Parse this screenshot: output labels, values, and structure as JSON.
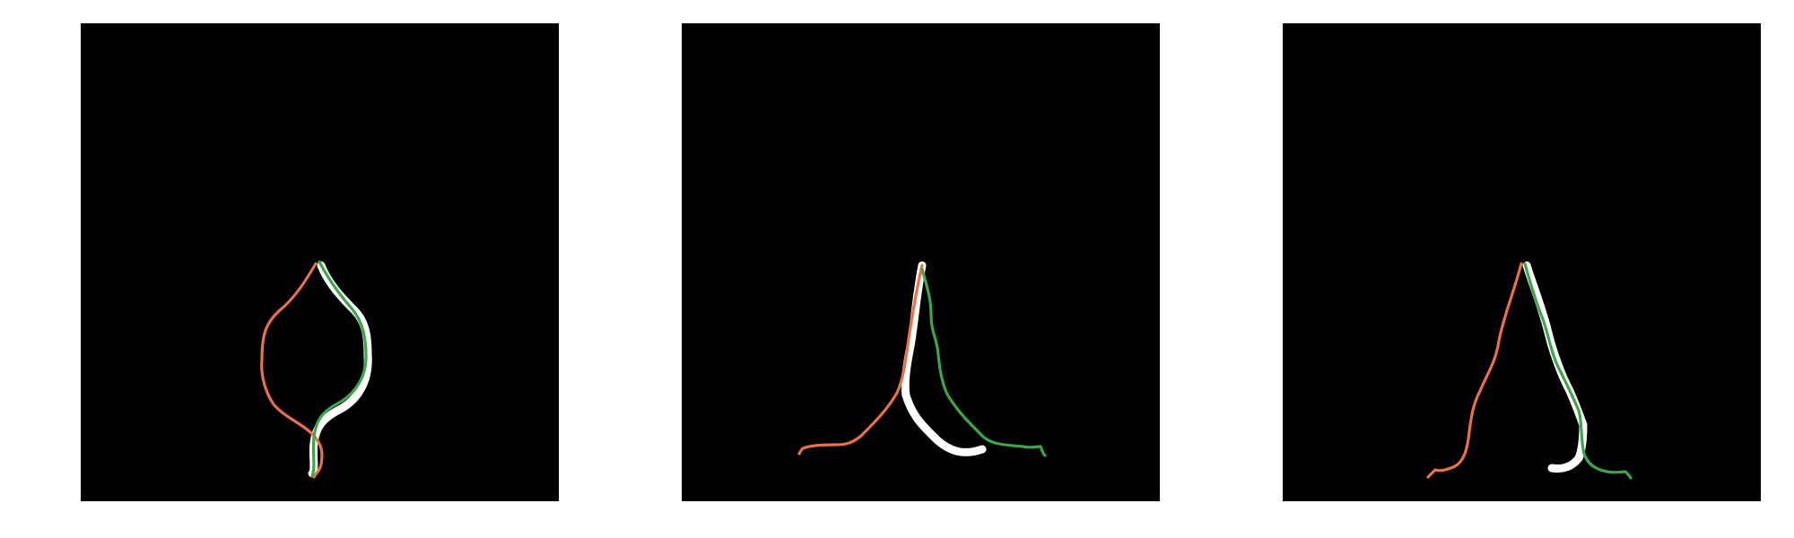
{
  "colors": {
    "background": "#ffffff",
    "panel": "#000000",
    "mask": "#ffffff",
    "left_curve": "#e8704a",
    "right_curve": "#3da64a"
  },
  "panels": [
    {
      "id": "panel-1",
      "description_shape": "closed-loop-crossing"
    },
    {
      "id": "panel-2",
      "description_shape": "inverted-v-spread"
    },
    {
      "id": "panel-3",
      "description_shape": "inverted-v-narrow"
    }
  ]
}
